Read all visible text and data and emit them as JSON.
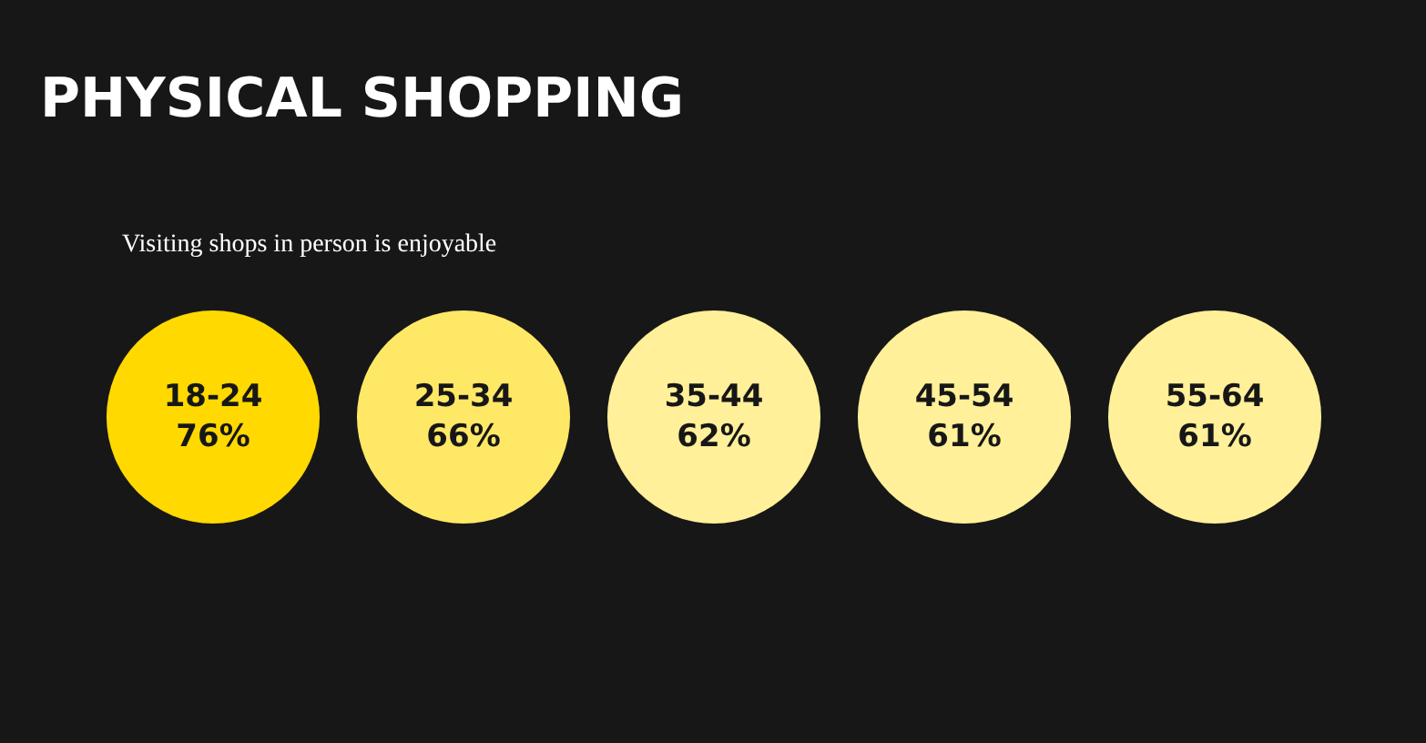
{
  "chart_data": {
    "type": "other",
    "title": "PHYSICAL SHOPPING",
    "subtitle": "Visiting shops in person is enjoyable",
    "categories": [
      "18-24",
      "25-34",
      "35-44",
      "45-54",
      "55-64"
    ],
    "values": [
      76,
      66,
      62,
      61,
      61
    ],
    "value_labels": [
      "76%",
      "66%",
      "62%",
      "61%",
      "61%"
    ],
    "colors": [
      "#ffd900",
      "#ffe866",
      "#fff099",
      "#fff099",
      "#fff099"
    ]
  }
}
